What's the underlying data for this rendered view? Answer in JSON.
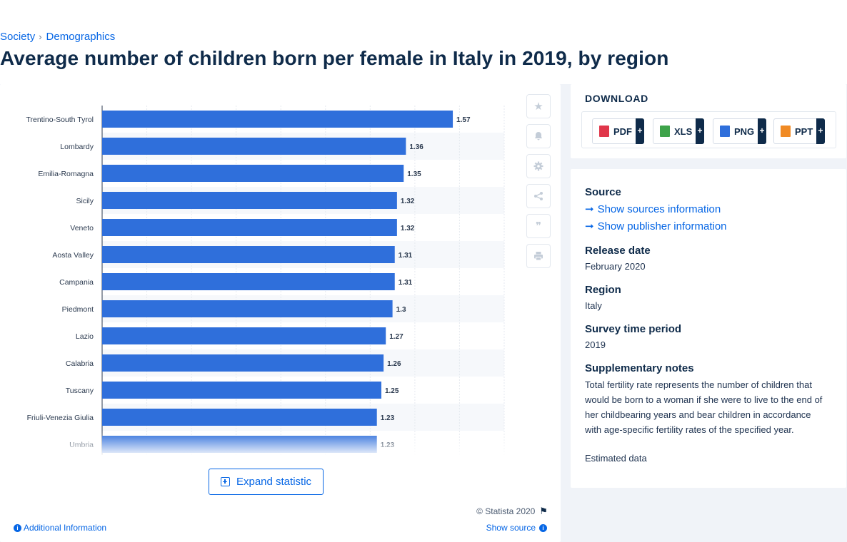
{
  "breadcrumb": {
    "items": [
      "Society",
      "Demographics"
    ]
  },
  "page_title": "Average number of children born per female in Italy in 2019, by region",
  "chart_data": {
    "type": "bar",
    "orientation": "horizontal",
    "categories": [
      "Trentino-South Tyrol",
      "Lombardy",
      "Emilia-Romagna",
      "Sicily",
      "Veneto",
      "Aosta Valley",
      "Campania",
      "Piedmont",
      "Lazio",
      "Calabria",
      "Tuscany",
      "Friuli-Venezia Giulia",
      "Umbria"
    ],
    "values": [
      1.57,
      1.36,
      1.35,
      1.32,
      1.32,
      1.31,
      1.31,
      1.3,
      1.27,
      1.26,
      1.25,
      1.23,
      1.23
    ],
    "value_labels": [
      "1.57",
      "1.36",
      "1.35",
      "1.32",
      "1.32",
      "1.31",
      "1.31",
      "1.3",
      "1.27",
      "1.26",
      "1.25",
      "1.23",
      "1.23"
    ],
    "xlim": [
      0,
      1.8
    ],
    "grid": true,
    "bar_color": "#2f6fdb",
    "title": "",
    "xlabel": "",
    "ylabel": ""
  },
  "chart_footer": {
    "expand_label": "Expand statistic",
    "copyright": "© Statista 2020",
    "additional_info": "Additional Information",
    "show_source": "Show source"
  },
  "download": {
    "title": "DOWNLOAD",
    "buttons": [
      {
        "label": "PDF",
        "icon": "pdf-file-icon",
        "color": "#e0364a"
      },
      {
        "label": "XLS",
        "icon": "xls-file-icon",
        "color": "#3ea34a"
      },
      {
        "label": "PNG",
        "icon": "png-file-icon",
        "color": "#2f6fdb"
      },
      {
        "label": "PPT",
        "icon": "ppt-file-icon",
        "color": "#f08a24"
      }
    ],
    "plus": "+"
  },
  "meta": {
    "source_heading": "Source",
    "show_sources": "Show sources information",
    "show_publisher": "Show publisher information",
    "release_heading": "Release date",
    "release_value": "February 2020",
    "region_heading": "Region",
    "region_value": "Italy",
    "survey_heading": "Survey time period",
    "survey_value": "2019",
    "notes_heading": "Supplementary notes",
    "notes_text": "Total fertility rate represents the number of children that would be born to a woman if she were to live to the end of her childbearing years and bear children in accordance with age-specific fertility rates of the specified year.",
    "notes_extra": "Estimated data"
  },
  "colors": {
    "accent": "#0666e5",
    "navy": "#0f2b4a"
  }
}
